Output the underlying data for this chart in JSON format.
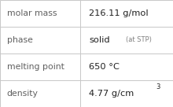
{
  "rows": [
    {
      "label": "molar mass",
      "value": "216.11 g/mol",
      "type": "simple"
    },
    {
      "label": "phase",
      "value": "solid",
      "type": "phase",
      "value_suffix": "(at STP)"
    },
    {
      "label": "melting point",
      "value": "650 °C",
      "type": "simple"
    },
    {
      "label": "density",
      "value_main": "4.77 g/cm",
      "value_sup": "3",
      "type": "density"
    }
  ],
  "col_split": 0.465,
  "background_color": "#ffffff",
  "border_color": "#c8c8c8",
  "label_color": "#606060",
  "value_color": "#202020",
  "suffix_color": "#808080",
  "label_fontsize": 7.8,
  "value_fontsize": 8.2,
  "suffix_fontsize": 6.0,
  "sup_fontsize": 6.0
}
